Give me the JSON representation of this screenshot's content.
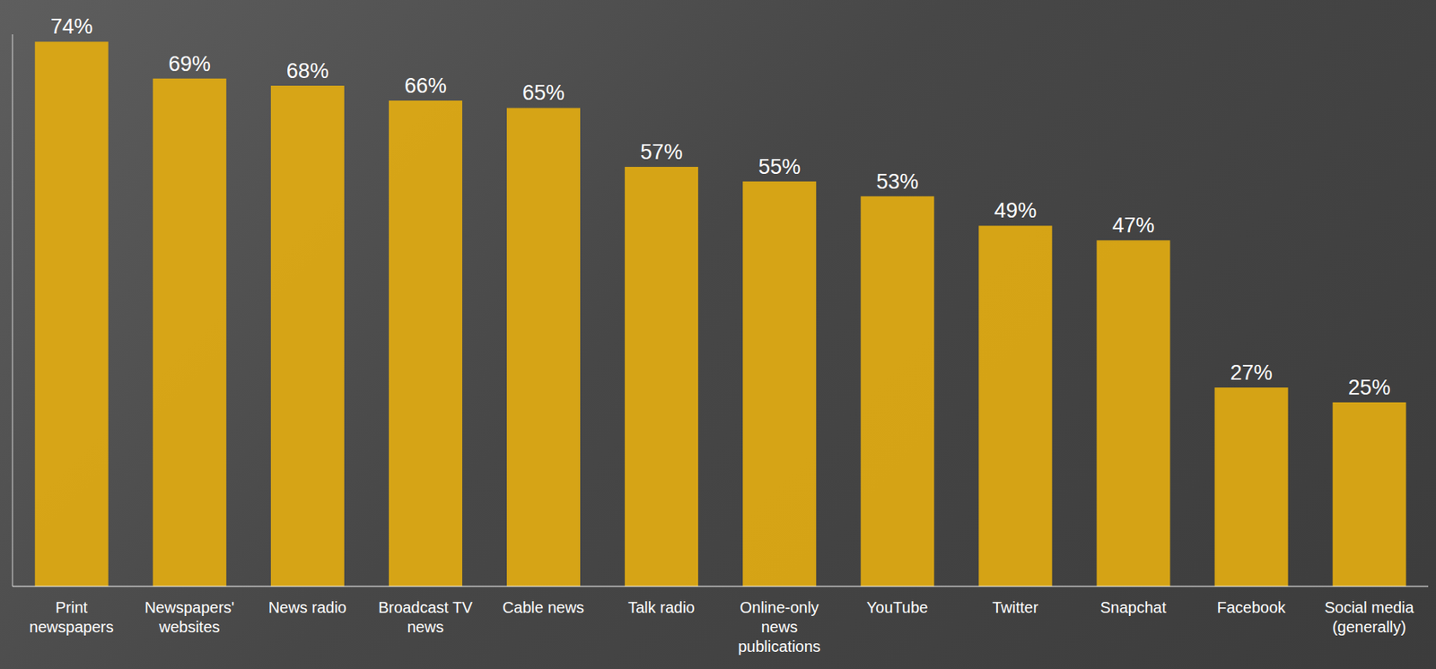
{
  "chart_data": {
    "type": "bar",
    "categories": [
      "Print newspapers",
      "Newspapers' websites",
      "News radio",
      "Broadcast TV news",
      "Cable news",
      "Talk radio",
      "Online-only news publications",
      "YouTube",
      "Twitter",
      "Snapchat",
      "Facebook",
      "Social media (generally)"
    ],
    "values": [
      74,
      69,
      68,
      66,
      65,
      57,
      55,
      53,
      49,
      47,
      27,
      25
    ],
    "value_labels": [
      "74%",
      "69%",
      "68%",
      "66%",
      "65%",
      "57%",
      "55%",
      "53%",
      "49%",
      "47%",
      "27%",
      "25%"
    ],
    "color": "#e1ab12",
    "ylim": [
      0,
      75
    ],
    "grid": false,
    "data_labels": true,
    "tick_labels": "x"
  }
}
